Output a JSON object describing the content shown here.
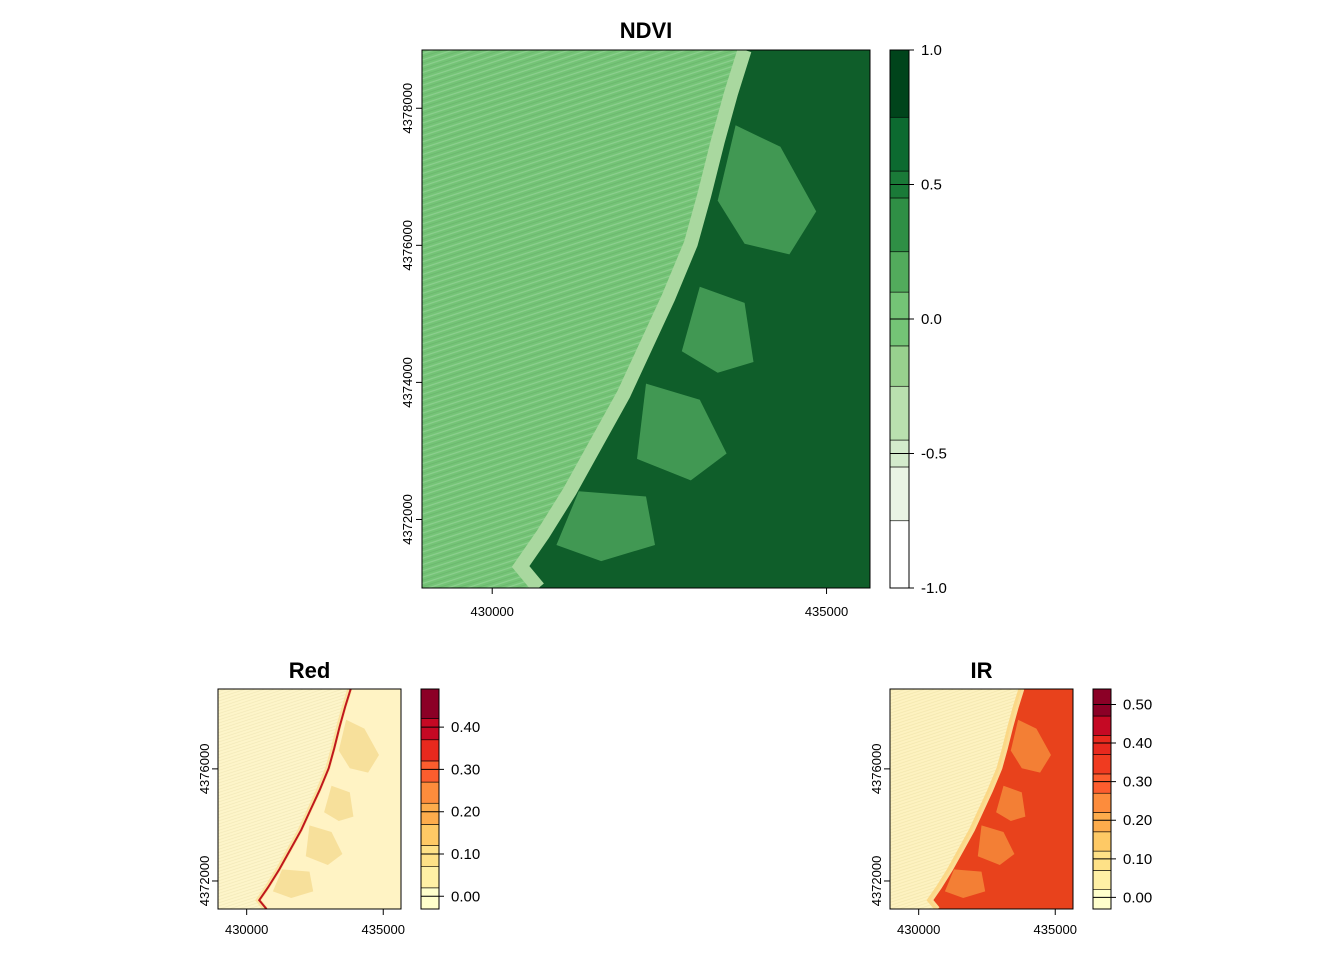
{
  "chart_data": [
    {
      "type": "heatmap",
      "title": "NDVI",
      "x_ticks": [
        "430000",
        "435000"
      ],
      "x_tick_values": [
        430000,
        435000
      ],
      "xlim": [
        428950,
        435650
      ],
      "y_ticks": [
        "4372000",
        "4374000",
        "4376000",
        "4378000"
      ],
      "y_tick_values": [
        4372000,
        4374000,
        4376000,
        4378000
      ],
      "ylim": [
        4371000,
        4378850
      ],
      "legend": {
        "ticks": [
          "1.0",
          "0.5",
          "0.0",
          "-0.5",
          "-1.0"
        ],
        "tick_values": [
          1.0,
          0.5,
          0.0,
          -0.5,
          -1.0
        ],
        "range": [
          -1.0,
          1.0
        ],
        "breaks": [
          -1.0,
          -0.75,
          -0.55,
          -0.45,
          -0.25,
          -0.1,
          0.1,
          0.25,
          0.45,
          0.55,
          0.75,
          1.0
        ],
        "colors": [
          "#ffffff",
          "#e9f4e4",
          "#d3ebcc",
          "#b9e0af",
          "#98d18e",
          "#74c476",
          "#52ab5c",
          "#2f8f45",
          "#1a7a38",
          "#0c6a30",
          "#00441b"
        ]
      },
      "colors": {
        "water": "#74c476",
        "beach": "#a9d89f",
        "veg": "#0f5e2a"
      }
    },
    {
      "type": "heatmap",
      "title": "Red",
      "x_ticks": [
        "430000",
        "435000"
      ],
      "x_tick_values": [
        430000,
        435000
      ],
      "xlim": [
        428950,
        435650
      ],
      "y_ticks": [
        "4372000",
        "4376000"
      ],
      "y_tick_values": [
        4372000,
        4376000
      ],
      "ylim": [
        4371000,
        4378850
      ],
      "legend": {
        "ticks": [
          "0.40",
          "0.30",
          "0.20",
          "0.10",
          "0.00"
        ],
        "tick_values": [
          0.4,
          0.3,
          0.2,
          0.1,
          0.0
        ],
        "range": [
          -0.03,
          0.49
        ],
        "breaks": [
          -0.03,
          0.02,
          0.07,
          0.12,
          0.17,
          0.22,
          0.27,
          0.32,
          0.37,
          0.42,
          0.49
        ],
        "colors": [
          "#ffffcc",
          "#fff0a5",
          "#fee187",
          "#fec965",
          "#fdac4c",
          "#fd8c3c",
          "#fc5d2e",
          "#e8291e",
          "#c50924",
          "#8b0026"
        ]
      },
      "colors": {
        "water": "#fdf4c5",
        "beach": "#fbe3a0",
        "land": "#fff3c4"
      }
    },
    {
      "type": "heatmap",
      "title": "IR",
      "x_ticks": [
        "430000",
        "435000"
      ],
      "x_tick_values": [
        430000,
        435000
      ],
      "xlim": [
        428950,
        435650
      ],
      "y_ticks": [
        "4372000",
        "4376000"
      ],
      "y_tick_values": [
        4372000,
        4376000
      ],
      "ylim": [
        4371000,
        4378850
      ],
      "legend": {
        "ticks": [
          "0.50",
          "0.40",
          "0.30",
          "0.20",
          "0.10",
          "0.00"
        ],
        "tick_values": [
          0.5,
          0.4,
          0.3,
          0.2,
          0.1,
          0.0
        ],
        "range": [
          -0.03,
          0.54
        ],
        "breaks": [
          -0.03,
          0.02,
          0.07,
          0.12,
          0.17,
          0.22,
          0.27,
          0.32,
          0.37,
          0.42,
          0.47,
          0.54
        ],
        "colors": [
          "#ffffcc",
          "#fff0a5",
          "#fee187",
          "#fec965",
          "#fdac4c",
          "#fd8c3c",
          "#fc5d2e",
          "#f03b20",
          "#e8291e",
          "#c50924",
          "#8b0026"
        ]
      },
      "colors": {
        "water": "#fdf1bb",
        "beach": "#fbdc95",
        "land": "#e8421c"
      }
    }
  ]
}
